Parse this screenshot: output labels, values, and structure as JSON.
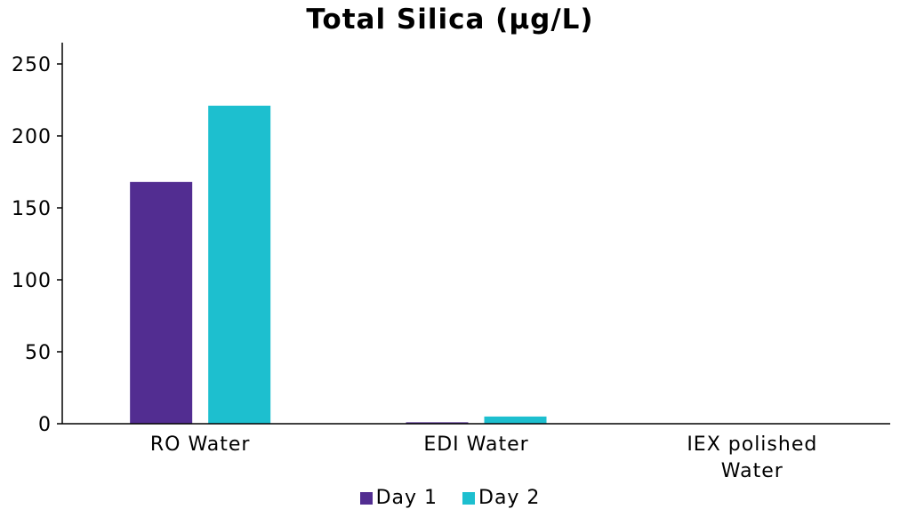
{
  "chart_data": {
    "type": "bar",
    "title": "Total Silica (µg/L)",
    "categories": [
      [
        "RO Water"
      ],
      [
        "EDI Water"
      ],
      [
        "IEX polished",
        "Water"
      ]
    ],
    "series": [
      {
        "name": "Day 1",
        "color": "#522d91",
        "values": [
          168,
          1,
          0
        ]
      },
      {
        "name": "Day 2",
        "color": "#1dbfcf",
        "values": [
          221,
          5,
          0
        ]
      }
    ],
    "ylim": [
      0,
      250
    ],
    "yticks": [
      0,
      50,
      100,
      150,
      200,
      250
    ],
    "grid": false,
    "legend_position": "bottom"
  }
}
